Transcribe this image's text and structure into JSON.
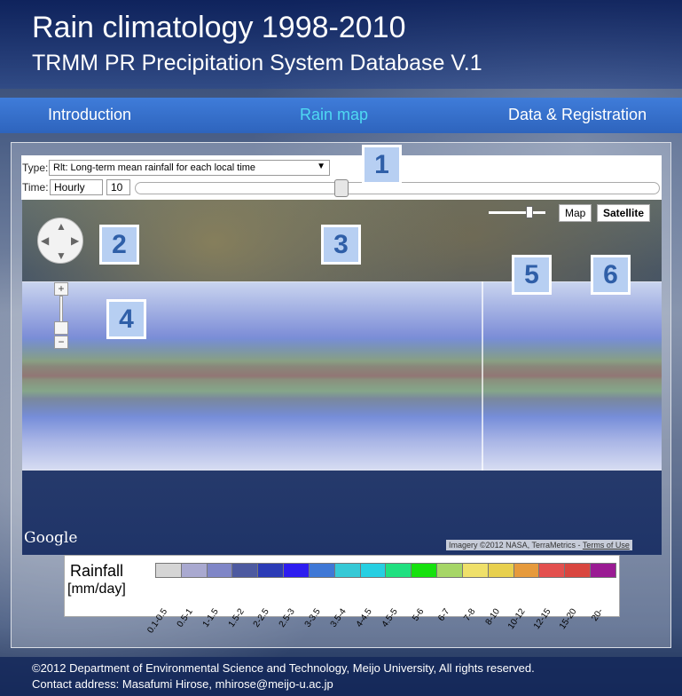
{
  "header": {
    "title": "Rain climatology 1998-2010",
    "subtitle": "TRMM PR Precipitation System Database V.1"
  },
  "nav": {
    "items": [
      {
        "label": "Introduction"
      },
      {
        "label": "Rain map"
      },
      {
        "label": "Data & Registration"
      }
    ],
    "active": "Rain map"
  },
  "controls": {
    "type_label": "Type:",
    "type_value": "Rlt: Long-term mean rainfall for each local time",
    "time_label": "Time:",
    "time_unit": "Hourly",
    "time_value": "10",
    "time_slider_fraction": 0.39
  },
  "map": {
    "opacity_slider_fraction": 0.75,
    "maptype_map": "Map",
    "maptype_satellite": "Satellite",
    "maptype_selected": "Satellite",
    "google_logo": "Google",
    "attribution": "Imagery ©2012 NASA, TerraMetrics -",
    "terms": "Terms of Use",
    "zoom_in": "+",
    "zoom_out": "−"
  },
  "callouts": [
    "1",
    "2",
    "3",
    "4",
    "5",
    "6"
  ],
  "legend": {
    "title": "Rainfall",
    "unit": "[mm/day]",
    "bins": [
      {
        "label": "0.1-0.5",
        "color": "#d5d5d5"
      },
      {
        "label": "0.5-1",
        "color": "#a9a9d0"
      },
      {
        "label": "1-1.5",
        "color": "#7f86c7"
      },
      {
        "label": "1.5-2",
        "color": "#4d5aa0"
      },
      {
        "label": "2-2.5",
        "color": "#2b3bb6"
      },
      {
        "label": "2.5-3",
        "color": "#2d1df0"
      },
      {
        "label": "3-3.5",
        "color": "#3f78d6"
      },
      {
        "label": "3.5-4",
        "color": "#36c9d6"
      },
      {
        "label": "4-4.5",
        "color": "#26cfe2"
      },
      {
        "label": "4.5-5",
        "color": "#20e080"
      },
      {
        "label": "5-6",
        "color": "#16e10e"
      },
      {
        "label": "6-7",
        "color": "#a6d667"
      },
      {
        "label": "7-8",
        "color": "#efe06a"
      },
      {
        "label": "8-10",
        "color": "#e8d04e"
      },
      {
        "label": "10-12",
        "color": "#e69a3c"
      },
      {
        "label": "12-15",
        "color": "#e3504e"
      },
      {
        "label": "15-20",
        "color": "#d9463f"
      },
      {
        "label": "20-",
        "color": "#9a1b93"
      }
    ]
  },
  "footer": {
    "line1": "©2012 Department of Environmental Science and Technology, Meijo University, All rights reserved.",
    "line2": "Contact address: Masafumi Hirose, mhirose@meijo-u.ac.jp"
  }
}
